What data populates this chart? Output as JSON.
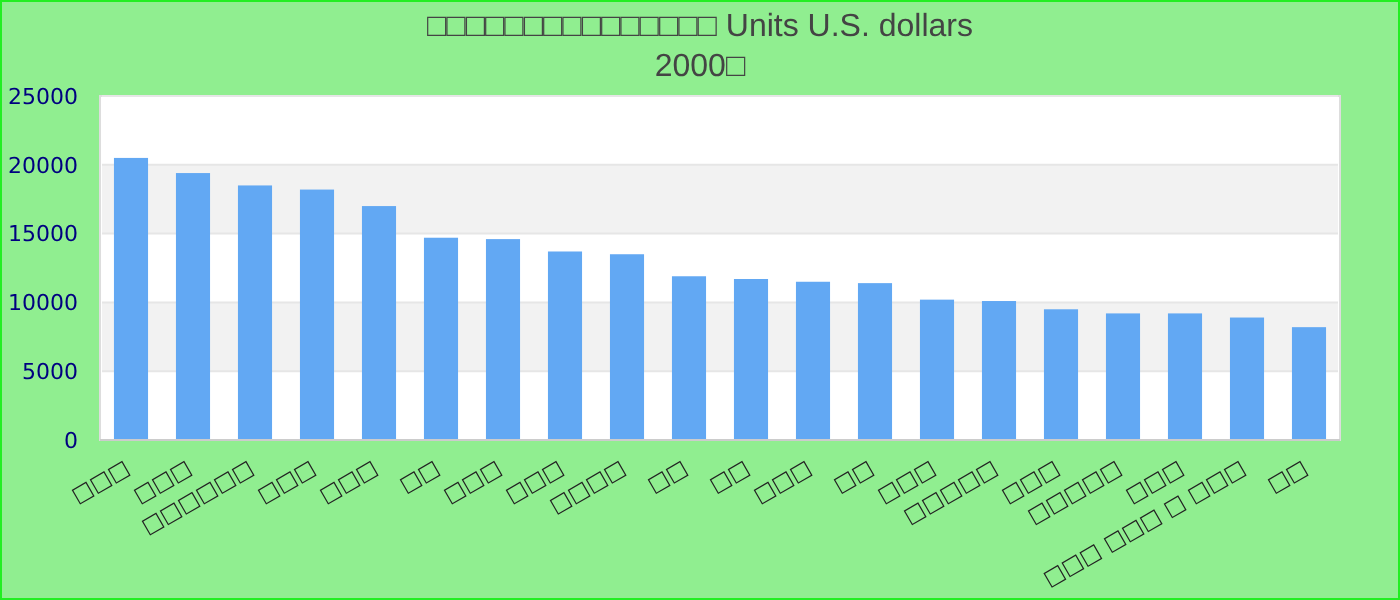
{
  "chart_data": {
    "type": "bar",
    "title": "□□□□□□□□□□□□□□□ Units U.S. dollars",
    "subtitle": "2000□",
    "categories": [
      "□□□",
      "□□□",
      "□□□□□□",
      "□□□",
      "□□□",
      "□□",
      "□□□",
      "□□□",
      "□□□□",
      "□□",
      "□□",
      "□□□",
      "□□",
      "□□□",
      "□□□□□",
      "□□□",
      "□□□□□",
      "□□□",
      "□□□ □□□ □ □□□",
      "□□"
    ],
    "values": [
      20500,
      19400,
      18500,
      18200,
      17000,
      14700,
      14600,
      13700,
      13500,
      11900,
      11700,
      11500,
      11400,
      10200,
      10100,
      9500,
      9200,
      9200,
      8900,
      8200
    ],
    "color": "#62a8f3",
    "ylim": [
      0,
      25000
    ],
    "yticks": [
      0,
      5000,
      10000,
      15000,
      20000,
      25000
    ],
    "grid": "y"
  }
}
